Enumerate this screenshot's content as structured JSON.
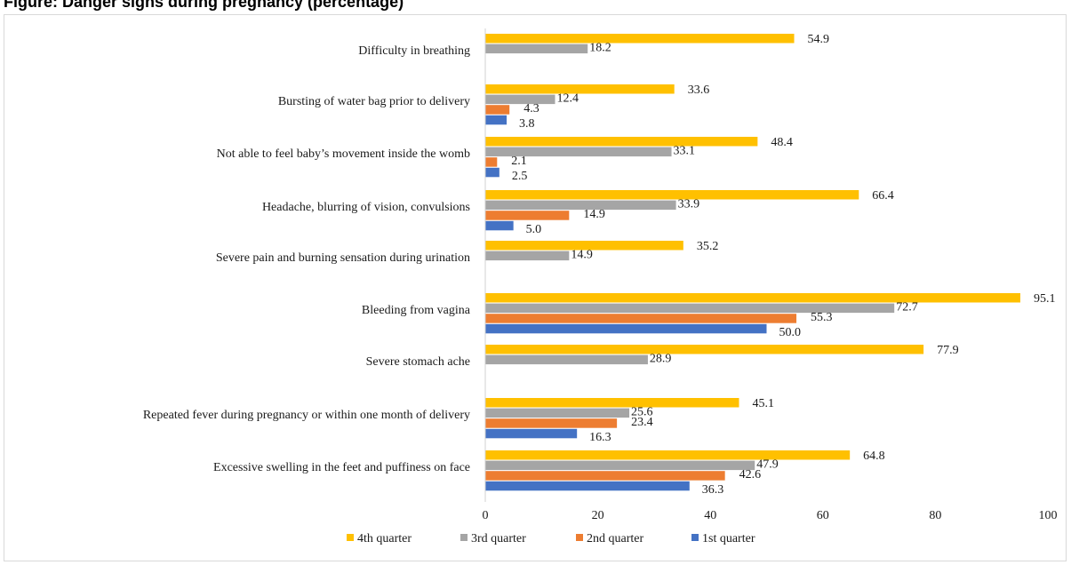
{
  "page": {
    "title": "Figure: Danger signs during pregnancy (percentage)"
  },
  "chart_data": {
    "type": "bar",
    "orientation": "horizontal",
    "title": "",
    "xlabel": "",
    "ylabel": "",
    "xlim": [
      0,
      100
    ],
    "xticks": [
      0,
      20,
      40,
      60,
      80,
      100
    ],
    "grid": false,
    "legend_position": "bottom",
    "categories": [
      "Difficulty in breathing",
      "Bursting of water bag prior to delivery",
      "Not able to feel baby’s movement inside the womb",
      "Headache, blurring of vision, convulsions",
      "Severe pain and burning sensation during urination",
      "Bleeding from vagina",
      "Severe stomach ache",
      "Repeated fever during pregnancy or within one month of delivery",
      "Excessive swelling in the feet and puffiness on face"
    ],
    "series": [
      {
        "name": "4th quarter",
        "color": "#FFC000",
        "values": [
          54.9,
          33.6,
          48.4,
          66.4,
          35.2,
          95.1,
          77.9,
          45.1,
          64.8
        ]
      },
      {
        "name": "3rd quarter",
        "color": "#A5A5A5",
        "values": [
          18.2,
          12.4,
          33.1,
          33.9,
          14.9,
          72.7,
          28.9,
          25.6,
          47.9
        ]
      },
      {
        "name": "2nd quarter",
        "color": "#ED7D31",
        "values": [
          null,
          4.3,
          2.1,
          14.9,
          null,
          55.3,
          null,
          23.4,
          42.6
        ]
      },
      {
        "name": "1st quarter",
        "color": "#4472C4",
        "values": [
          null,
          3.8,
          2.5,
          5.0,
          null,
          50.0,
          null,
          16.3,
          36.3
        ]
      }
    ],
    "value_labels": [
      [
        "54.9",
        "33.6",
        "48.4",
        "66.4",
        "35.2",
        "95.1",
        "77.9",
        "45.1",
        "64.8"
      ],
      [
        "18.2",
        "12.4",
        "33.1",
        "33.9",
        "14.9",
        "72.7",
        "28.9",
        "25.6",
        "47.9"
      ],
      [
        null,
        "4.3",
        "2.1",
        "14.9",
        null,
        "55.3",
        null,
        "23.4",
        "42.6"
      ],
      [
        null,
        "3.8",
        "2.5",
        "5.0",
        null,
        "50.0",
        null,
        "16.3",
        "36.3"
      ]
    ]
  }
}
